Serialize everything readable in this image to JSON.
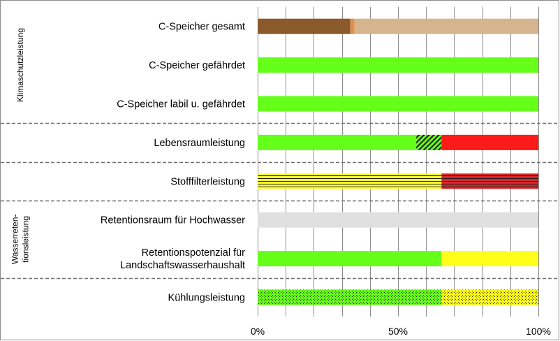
{
  "chart_data": {
    "type": "bar",
    "orientation": "horizontal",
    "stacked": true,
    "categories": [
      [
        "C-Speicher gesamt"
      ],
      [
        "C-Speicher gefährdet"
      ],
      [
        "C-Speicher labil u. gefährdet"
      ],
      [
        "Lebensraumleistung"
      ],
      [
        "Stofffilterleistung"
      ],
      [
        "Retentionsraum für Hochwasser"
      ],
      [
        "Retentionspotenzial für",
        "Landschaftswasserhaushalt"
      ],
      [
        "Kühlungsleistung"
      ]
    ],
    "segments": [
      [
        {
          "value": 33,
          "color": "#8B5A2B",
          "pattern": "solid"
        },
        {
          "value": 1.5,
          "color": "#E0914F",
          "pattern": "solid"
        },
        {
          "value": 65.5,
          "color": "#D5B48E",
          "pattern": "solid"
        }
      ],
      [
        {
          "value": 100,
          "color": "#66FF1A",
          "pattern": "solid"
        }
      ],
      [
        {
          "value": 100,
          "color": "#66FF1A",
          "pattern": "solid"
        }
      ],
      [
        {
          "value": 56.5,
          "color": "#66FF1A",
          "pattern": "solid"
        },
        {
          "value": 9,
          "color": "#66FF1A",
          "pattern": "diagonal"
        },
        {
          "value": 34.5,
          "color": "#FF1A1A",
          "pattern": "solid"
        }
      ],
      [
        {
          "value": 65.5,
          "color": "#FFFF33",
          "pattern": "hlines"
        },
        {
          "value": 34.5,
          "color": "#D7262B",
          "pattern": "hlines"
        }
      ],
      [
        {
          "value": 100,
          "color": "#E0E0E0",
          "pattern": "solid"
        }
      ],
      [
        {
          "value": 65.5,
          "color": "#66FF1A",
          "pattern": "solid"
        },
        {
          "value": 34.5,
          "color": "#FFFF1A",
          "pattern": "solid"
        }
      ],
      [
        {
          "value": 65.5,
          "color": "#66FF1A",
          "pattern": "dots"
        },
        {
          "value": 34.5,
          "color": "#FFFF1A",
          "pattern": "dots"
        }
      ]
    ],
    "xlim": [
      0,
      100
    ],
    "x_ticks": [
      "0%",
      "50%",
      "100%"
    ],
    "grid": true,
    "groups": [
      {
        "label": [
          "Klimaschutzleistung"
        ],
        "rows": [
          0,
          2
        ]
      },
      {
        "label": [
          "Wasserreten-",
          "tionsleistung"
        ],
        "rows": [
          5,
          6
        ]
      }
    ],
    "separators_after_rows": [
      2,
      3,
      4,
      6
    ]
  }
}
